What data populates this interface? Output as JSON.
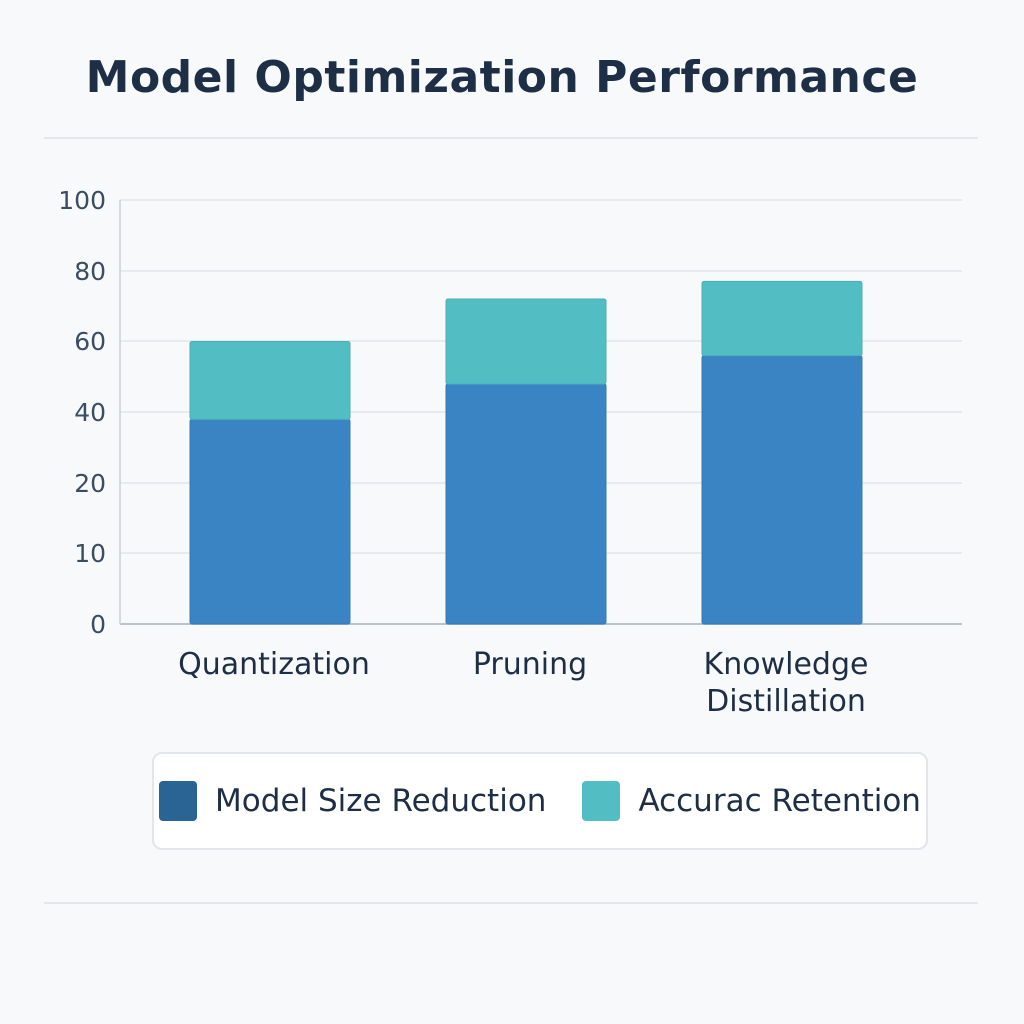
{
  "chart_data": {
    "type": "bar",
    "stacked": true,
    "title": "Model Optimization Performance",
    "categories": [
      "Quantization",
      "Pruning",
      "Knowledge Distillation"
    ],
    "category_lines": [
      [
        "Quantization"
      ],
      [
        "Pruning"
      ],
      [
        "Knowledge",
        "Distillation"
      ]
    ],
    "y_ticks": [
      "0",
      "10",
      "20",
      "40",
      "60",
      "80",
      "100"
    ],
    "series": [
      {
        "name": "Model Size Reduction",
        "color": "#3b84c4",
        "values": [
          38,
          48,
          56
        ]
      },
      {
        "name": "Accurac Retention",
        "color": "#52bec4",
        "values": [
          22,
          24,
          21
        ]
      }
    ],
    "legend": [
      {
        "label": "Model Size Reduction",
        "color": "#2a6494"
      },
      {
        "label": "Accurac Retention",
        "color": "#52bec4"
      }
    ],
    "xlabel": "",
    "ylabel": "",
    "grid": true,
    "legend_position": "bottom"
  }
}
